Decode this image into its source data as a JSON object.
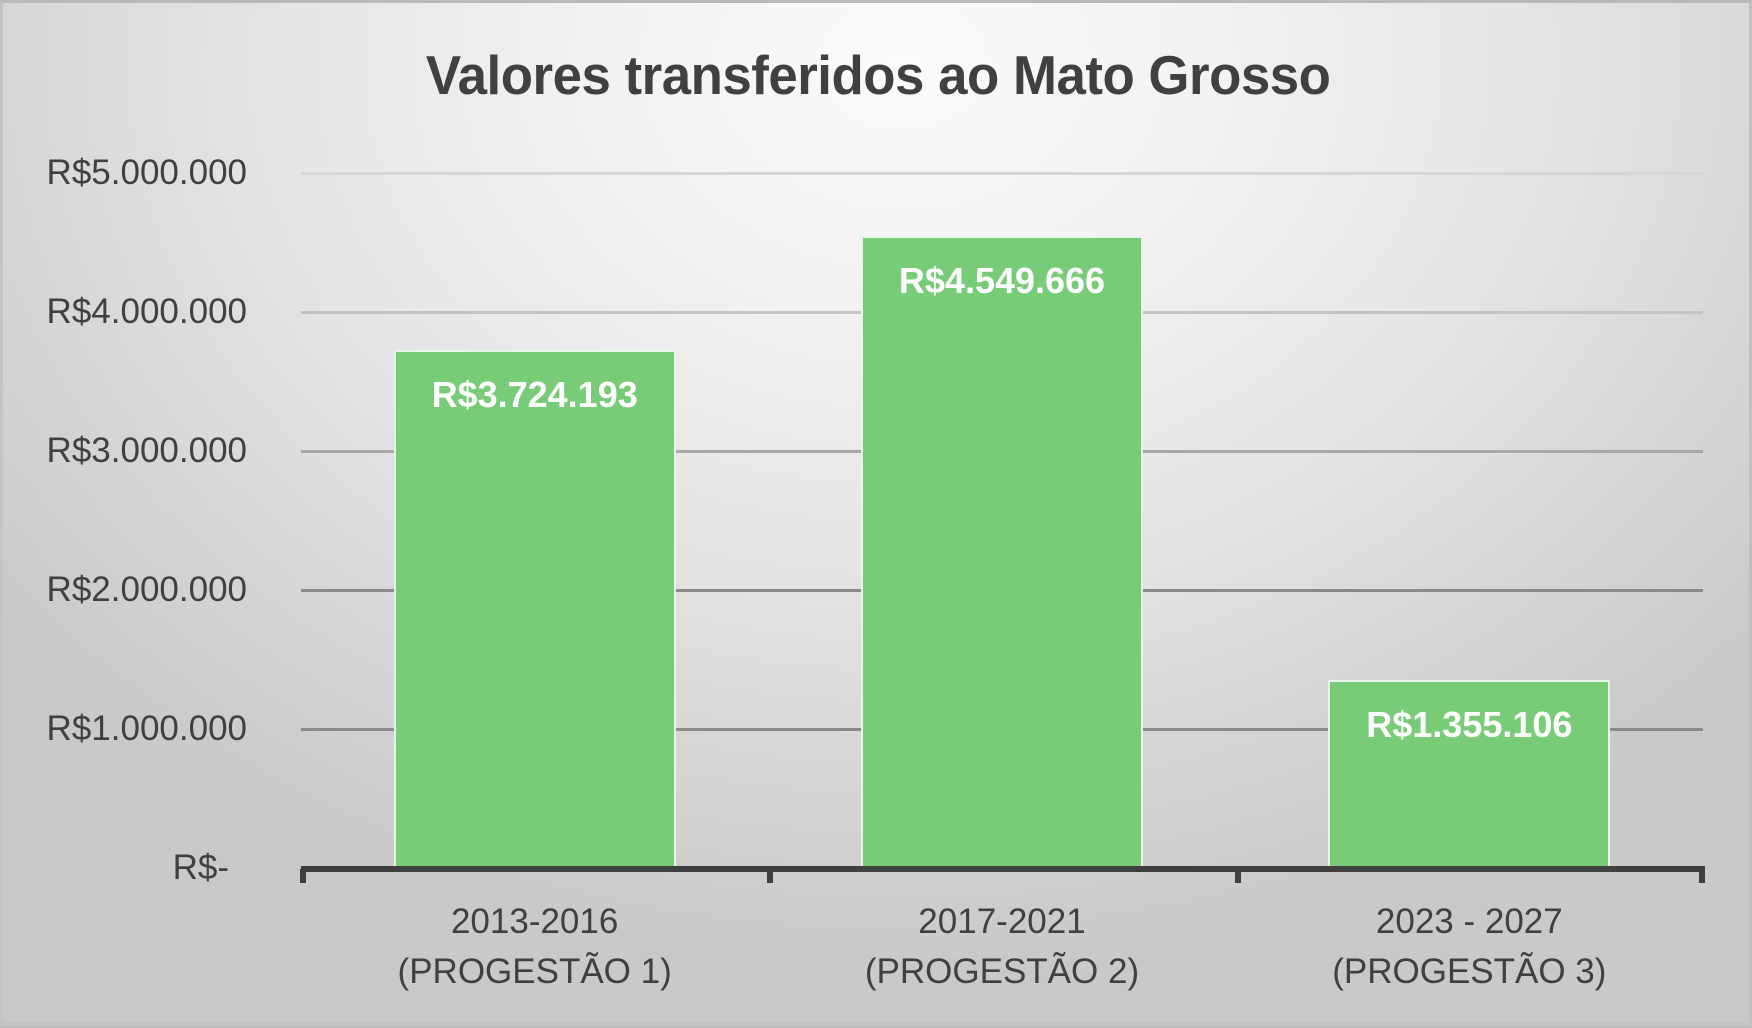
{
  "chart_data": {
    "type": "bar",
    "title": "Valores transferidos ao Mato Grosso",
    "xlabel": "",
    "ylabel": "",
    "categories": [
      "2013-2016 (PROGESTÃO 1)",
      "2017-2021 (PROGESTÃO 2)",
      "2023 - 2027 (PROGESTÃO 3)"
    ],
    "category_lines": [
      [
        "2013-2016",
        "(PROGESTÃO 1)"
      ],
      [
        "2017-2021",
        "(PROGESTÃO 2)"
      ],
      [
        "2023 - 2027",
        "(PROGESTÃO 3)"
      ]
    ],
    "values": [
      3724193,
      4549666,
      1355106
    ],
    "data_labels": [
      "R$3.724.193",
      "R$4.549.666",
      "R$1.355.106"
    ],
    "ylim": [
      0,
      5000000
    ],
    "y_ticks": [
      0,
      1000000,
      2000000,
      3000000,
      4000000,
      5000000
    ],
    "y_tick_labels": [
      "R$-",
      "R$1.000.000",
      "R$2.000.000",
      "R$3.000.000",
      "R$4.000.000",
      "R$5.000.000"
    ],
    "grid": true,
    "legend": "none",
    "bar_color": "#78CC78",
    "data_label_color": "#FFFFFF",
    "text_color": "#404040"
  }
}
